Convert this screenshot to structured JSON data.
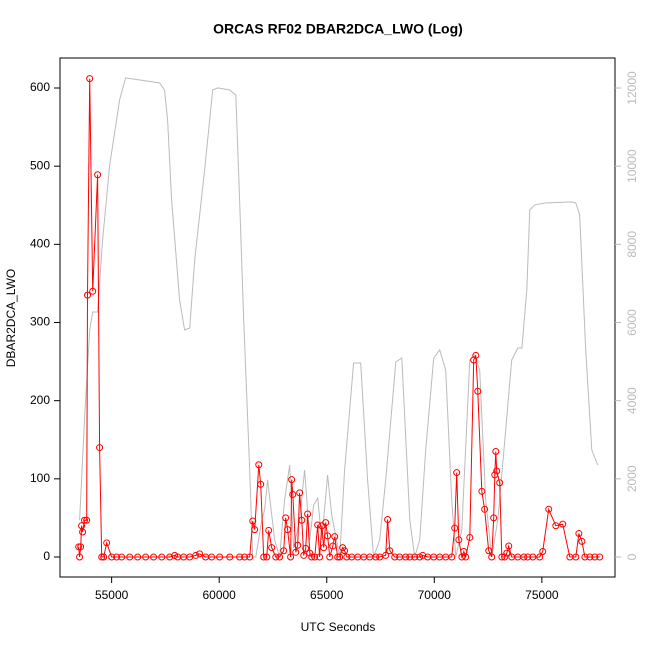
{
  "chart_data": {
    "type": "line",
    "title": "ORCAS RF02 DBAR2DCA_LWO (Log)",
    "x_label": "UTC Seconds",
    "y_label": "DBAR2DCA_LWO",
    "xlim": [
      52600,
      78400
    ],
    "xticks": [
      55000,
      60000,
      65000,
      70000,
      75000
    ],
    "ylim": [
      -25.6,
      638.4
    ],
    "yticks": [
      0,
      100,
      200,
      300,
      400,
      500,
      600
    ],
    "y2lim": [
      -512,
      12768
    ],
    "y2ticks": [
      0,
      2000,
      4000,
      6000,
      8000,
      10000,
      12000
    ],
    "y2_color": "#bbbbbb",
    "series": [
      {
        "color": "#bbbbbb",
        "axis": "y2",
        "x": [
          53510,
          53740,
          53980,
          54120,
          54350,
          54580,
          54910,
          55370,
          55650,
          57230,
          57460,
          57600,
          57790,
          58160,
          58390,
          58630,
          58860,
          59320,
          59700,
          59930,
          60490,
          60770,
          60950,
          61140,
          61420,
          61560,
          61700,
          61980,
          62110,
          62250,
          62580,
          62810,
          63040,
          63280,
          63460,
          63740,
          63970,
          64210,
          64390,
          64580,
          64770,
          65040,
          65230,
          65600,
          65830,
          66250,
          66580,
          66900,
          67180,
          67460,
          67740,
          68210,
          68490,
          68860,
          69090,
          69320,
          69600,
          69970,
          70250,
          70530,
          70810,
          71000,
          71280,
          71650,
          71880,
          72110,
          72390,
          72670,
          72950,
          73320,
          73600,
          73880,
          74070,
          74300,
          74440,
          74670,
          75130,
          76390,
          76580,
          76760,
          77040,
          77320,
          77600
        ],
        "values": [
          947,
          3506,
          5809,
          6270,
          6270,
          8112,
          10031,
          11695,
          12258,
          12130,
          11950,
          11183,
          9136,
          6577,
          5809,
          5860,
          7600,
          9903,
          11950,
          12002,
          11950,
          11822,
          9136,
          6065,
          2226,
          0,
          0,
          947,
          1203,
          1970,
          435,
          0,
          1459,
          2354,
          230,
          947,
          2226,
          435,
          1331,
          1510,
          435,
          2098,
          1075,
          0,
          2226,
          4964,
          4964,
          1970,
          0,
          435,
          1970,
          4990,
          5092,
          947,
          0,
          435,
          2738,
          5092,
          5297,
          4785,
          1459,
          0,
          691,
          5041,
          5170,
          4785,
          1459,
          0,
          947,
          3250,
          5041,
          5348,
          5348,
          6832,
          8880,
          9008,
          9059,
          9085,
          9059,
          8752,
          5297,
          2738,
          2354
        ]
      },
      {
        "color": "#ff0000",
        "marker": "circle",
        "x": [
          53470,
          53510,
          53560,
          53605,
          53650,
          53740,
          53840,
          53880,
          53980,
          54120,
          54350,
          54440,
          54540,
          54630,
          54770,
          55000,
          55230,
          55465,
          55840,
          56210,
          56580,
          56950,
          57330,
          57700,
          57930,
          58070,
          58350,
          58630,
          58910,
          59090,
          59370,
          59650,
          60020,
          60490,
          60950,
          61180,
          61420,
          61560,
          61650,
          61840,
          61930,
          62070,
          62210,
          62300,
          62440,
          62630,
          62810,
          63000,
          63090,
          63180,
          63320,
          63370,
          63420,
          63560,
          63650,
          63740,
          63840,
          63930,
          64020,
          64110,
          64210,
          64300,
          64440,
          64580,
          64670,
          64770,
          64860,
          64950,
          65040,
          65140,
          65280,
          65370,
          65510,
          65600,
          65740,
          65830,
          65930,
          66160,
          66440,
          66720,
          67000,
          67280,
          67460,
          67740,
          67830,
          67930,
          68160,
          68390,
          68670,
          68860,
          69090,
          69320,
          69460,
          69690,
          69970,
          70250,
          70530,
          70810,
          70950,
          71040,
          71140,
          71280,
          71370,
          71460,
          71650,
          71830,
          71930,
          72020,
          72210,
          72340,
          72530,
          72670,
          72760,
          72810,
          72860,
          72900,
          73040,
          73140,
          73270,
          73370,
          73460,
          73600,
          73880,
          74160,
          74340,
          74580,
          74900,
          75040,
          75320,
          75650,
          75970,
          76300,
          76580,
          76720,
          76860,
          77000,
          77230,
          77460,
          77690
        ],
        "values": [
          13,
          0,
          13,
          40,
          32,
          47,
          47,
          335,
          612,
          340,
          489,
          140,
          0,
          0,
          18,
          0,
          0,
          0,
          0,
          0,
          0,
          0,
          0,
          0,
          2,
          0,
          0,
          0,
          2,
          4,
          0,
          0,
          0,
          0,
          0,
          0,
          0,
          46,
          35,
          118,
          93,
          0,
          0,
          34,
          12,
          0,
          0,
          8,
          50,
          35,
          0,
          99,
          80,
          6,
          15,
          82,
          47,
          2,
          11,
          55,
          5,
          0,
          0,
          41,
          0,
          40,
          12,
          44,
          27,
          0,
          14,
          26,
          0,
          0,
          12,
          8,
          0,
          0,
          0,
          0,
          0,
          0,
          0,
          2,
          48,
          8,
          0,
          0,
          0,
          0,
          0,
          0,
          2,
          0,
          0,
          0,
          0,
          0,
          37,
          108,
          22,
          0,
          7,
          0,
          25,
          252,
          258,
          212,
          84,
          61,
          8,
          0,
          50,
          105,
          135,
          110,
          95,
          0,
          0,
          5,
          14,
          0,
          0,
          0,
          0,
          0,
          0,
          7,
          61,
          40,
          42,
          0,
          0,
          30,
          20,
          0,
          0,
          0,
          0
        ]
      }
    ]
  }
}
